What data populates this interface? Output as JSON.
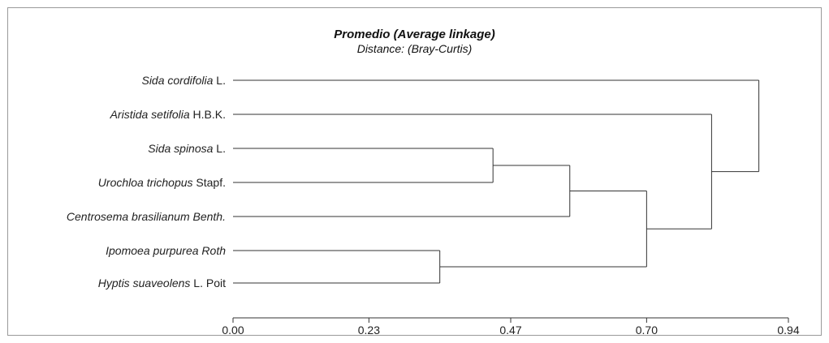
{
  "chart_data": {
    "type": "dendrogram",
    "title": "Promedio (Average linkage)",
    "subtitle": "Distance: (Bray-Curtis)",
    "xlim": [
      0,
      0.94
    ],
    "ticks": [
      "0.00",
      "0.23",
      "0.47",
      "0.70",
      "0.94"
    ],
    "leaves": [
      {
        "id": "sida-cordifolia",
        "parts": [
          {
            "t": "Sida cordifolia",
            "i": true
          },
          {
            "t": " L.",
            "i": false
          }
        ]
      },
      {
        "id": "aristida-setifolia",
        "parts": [
          {
            "t": "Aristida setifolia",
            "i": true
          },
          {
            "t": " H.B.K.",
            "i": false
          }
        ]
      },
      {
        "id": "sida-spinosa",
        "parts": [
          {
            "t": "Sida spinosa",
            "i": true
          },
          {
            "t": " L.",
            "i": false
          }
        ]
      },
      {
        "id": "urochloa-trichopus",
        "parts": [
          {
            "t": "Urochloa trichopus",
            "i": true
          },
          {
            "t": " Stapf.",
            "i": false
          }
        ]
      },
      {
        "id": "centrosema-brasilianum",
        "parts": [
          {
            "t": "Centrosema brasilianum Benth.",
            "i": true
          }
        ]
      },
      {
        "id": "ipomoea-purpurea",
        "parts": [
          {
            "t": "Ipomoea purpurea Roth",
            "i": true
          }
        ]
      },
      {
        "id": "hyptis-suaveolens",
        "parts": [
          {
            "t": "Hyptis suaveolens",
            "i": true
          },
          {
            "t": " L. Poit",
            "i": false
          }
        ]
      }
    ],
    "merges": [
      {
        "a": 5,
        "b": 6,
        "height": 0.35
      },
      {
        "a": 2,
        "b": 3,
        "height": 0.44
      },
      {
        "a": 8,
        "b": 4,
        "height": 0.57
      },
      {
        "a": 9,
        "b": 7,
        "height": 0.7
      },
      {
        "a": 1,
        "b": 10,
        "height": 0.81
      },
      {
        "a": 0,
        "b": 11,
        "height": 0.89
      }
    ]
  }
}
